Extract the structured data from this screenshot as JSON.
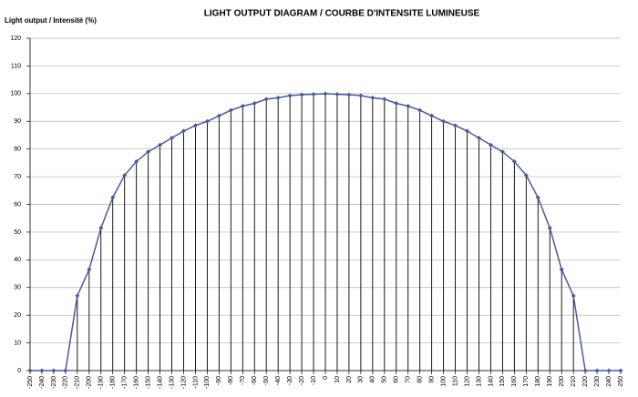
{
  "chart_data": {
    "type": "line",
    "title": "LIGHT OUTPUT DIAGRAM / COURBE D'INTENSITE LUMINEUSE",
    "y_label": "Light output / Intensité (%)",
    "categories": [
      -250,
      -240,
      -230,
      -220,
      -210,
      -200,
      -190,
      -180,
      -170,
      -160,
      -150,
      -140,
      -130,
      -120,
      -110,
      -100,
      -90,
      -80,
      -70,
      -60,
      -50,
      -40,
      -30,
      -20,
      -10,
      0,
      10,
      20,
      30,
      40,
      50,
      60,
      70,
      80,
      90,
      100,
      110,
      120,
      130,
      140,
      150,
      160,
      170,
      180,
      190,
      200,
      210,
      220,
      230,
      240,
      250
    ],
    "series": [
      {
        "color": "#4a5a9a",
        "values": [
          0,
          0,
          0,
          0,
          27,
          36.5,
          51.5,
          62.5,
          70.5,
          75.5,
          79,
          81.5,
          84,
          86.5,
          88.5,
          90,
          92,
          94,
          95.5,
          96.5,
          98,
          98.5,
          99.3,
          99.6,
          99.8,
          100,
          99.8,
          99.6,
          99.3,
          98.5,
          98,
          96.5,
          95.5,
          94,
          92,
          90,
          88.5,
          86.5,
          84,
          81.5,
          79,
          75.5,
          70.5,
          62.5,
          51.5,
          36.5,
          27,
          0,
          0,
          0,
          0
        ]
      }
    ],
    "drop_lines": true,
    "ylim": [
      0,
      120
    ],
    "yticks": [
      0,
      10,
      20,
      30,
      40,
      50,
      60,
      70,
      80,
      90,
      100,
      110,
      120
    ],
    "grid": true
  }
}
